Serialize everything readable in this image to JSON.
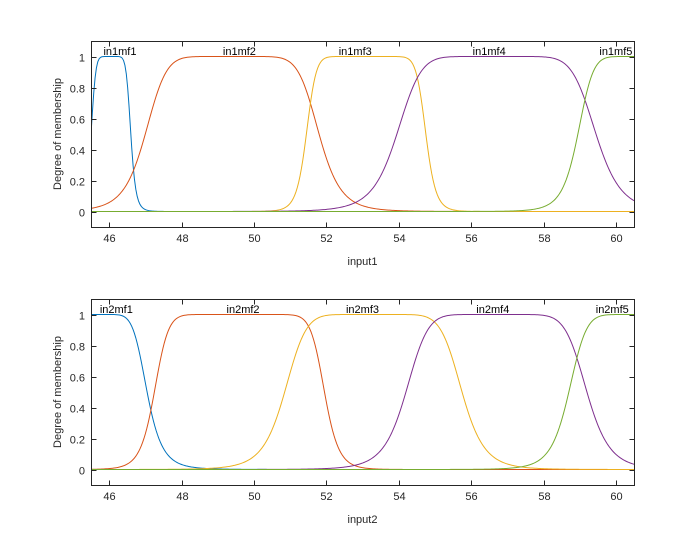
{
  "colors": {
    "mf1": "#0072BD",
    "mf2": "#D95319",
    "mf3": "#EDB120",
    "mf4": "#7E2F8E",
    "mf5": "#77AC30",
    "axis": "#262626"
  },
  "chart_data": [
    {
      "type": "line",
      "xlabel": "input1",
      "ylabel": "Degree of membership",
      "xlim": [
        45.5,
        60.5
      ],
      "ylim": [
        -0.1,
        1.1
      ],
      "xticks": [
        46,
        48,
        50,
        52,
        54,
        56,
        58,
        60
      ],
      "yticks": [
        0,
        0.2,
        0.4,
        0.6,
        0.8,
        1
      ],
      "membership_function": "generalized bell (approx. shape parameters)",
      "series": [
        {
          "name": "in1mf1",
          "label_x": 46.3,
          "params": {
            "a": 0.55,
            "b": 4.0,
            "c": 46.05
          }
        },
        {
          "name": "in1mf2",
          "label_x": 49.6,
          "params": {
            "a": 2.4,
            "b": 4.0,
            "c": 49.4
          }
        },
        {
          "name": "in1mf3",
          "label_x": 52.8,
          "params": {
            "a": 1.65,
            "b": 6.0,
            "c": 53.1
          }
        },
        {
          "name": "in1mf4",
          "label_x": 56.5,
          "params": {
            "a": 2.75,
            "b": 4.0,
            "c": 56.7
          }
        },
        {
          "name": "in1mf5",
          "label_x": 60.0,
          "params": {
            "a": 1.75,
            "b": 4.0,
            "c": 60.7
          }
        }
      ]
    },
    {
      "type": "line",
      "xlabel": "input2",
      "ylabel": "Degree of membership",
      "xlim": [
        45.5,
        60.5
      ],
      "ylim": [
        -0.1,
        1.1
      ],
      "xticks": [
        46,
        48,
        50,
        52,
        54,
        56,
        58,
        60
      ],
      "yticks": [
        0,
        0.2,
        0.4,
        0.6,
        0.8,
        1
      ],
      "membership_function": "generalized bell (approx. shape parameters)",
      "series": [
        {
          "name": "in2mf1",
          "label_x": 46.2,
          "params": {
            "a": 1.25,
            "b": 3.0,
            "c": 45.8
          }
        },
        {
          "name": "in2mf2",
          "label_x": 49.7,
          "params": {
            "a": 2.35,
            "b": 6.0,
            "c": 49.6
          }
        },
        {
          "name": "in2mf3",
          "label_x": 53.0,
          "params": {
            "a": 2.45,
            "b": 4.0,
            "c": 53.3
          }
        },
        {
          "name": "in2mf4",
          "label_x": 56.6,
          "params": {
            "a": 2.5,
            "b": 4.0,
            "c": 56.7
          }
        },
        {
          "name": "in2mf5",
          "label_x": 59.9,
          "params": {
            "a": 2.0,
            "b": 4.0,
            "c": 60.7
          }
        }
      ]
    }
  ]
}
